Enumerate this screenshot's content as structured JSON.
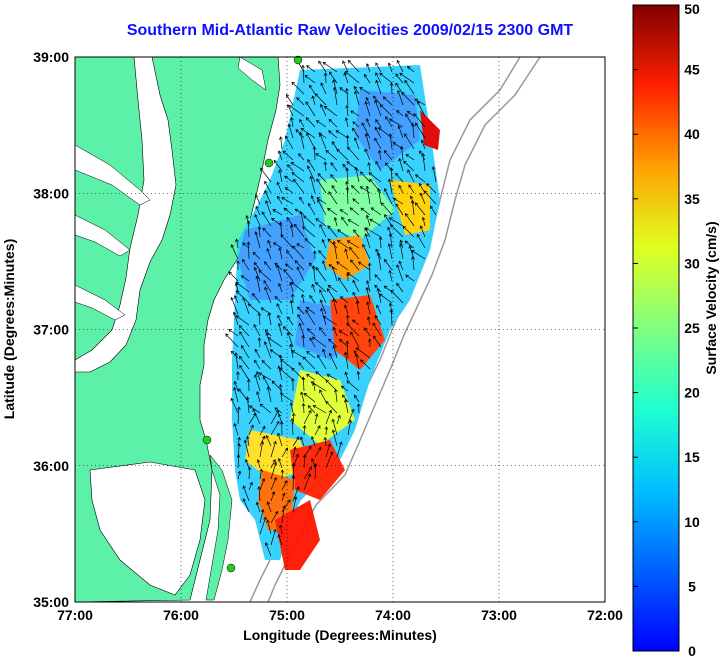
{
  "title": "Southern Mid-Atlantic Raw Velocities 2009/02/15 2300 GMT",
  "map": {
    "x_axis_label": "Longitude (Degrees:Minutes)",
    "y_axis_label": "Latitude (Degrees:Minutes)",
    "x_ticks": [
      {
        "lon": -77,
        "label": "77:00"
      },
      {
        "lon": -76,
        "label": "76:00"
      },
      {
        "lon": -75,
        "label": "75:00"
      },
      {
        "lon": -74,
        "label": "74:00"
      },
      {
        "lon": -73,
        "label": "73:00"
      },
      {
        "lon": -72,
        "label": "72:00"
      }
    ],
    "y_ticks": [
      {
        "lat": 39,
        "label": "39:00"
      },
      {
        "lat": 38,
        "label": "38:00"
      },
      {
        "lat": 37,
        "label": "37:00"
      },
      {
        "lat": 36,
        "label": "36:00"
      },
      {
        "lat": 35,
        "label": "35:00"
      }
    ],
    "lon_range": [
      -77,
      -72
    ],
    "lat_range": [
      35,
      39
    ],
    "grid": "dotted",
    "land_color": "#5cf0a8",
    "station_color": "#22cc22"
  },
  "colorbar": {
    "label": "Surface Velocity (cm/s)",
    "min": 0,
    "max": 50,
    "ticks": [
      "0",
      "5",
      "10",
      "15",
      "20",
      "25",
      "30",
      "35",
      "40",
      "45",
      "50"
    ],
    "colormap": "jet"
  }
}
